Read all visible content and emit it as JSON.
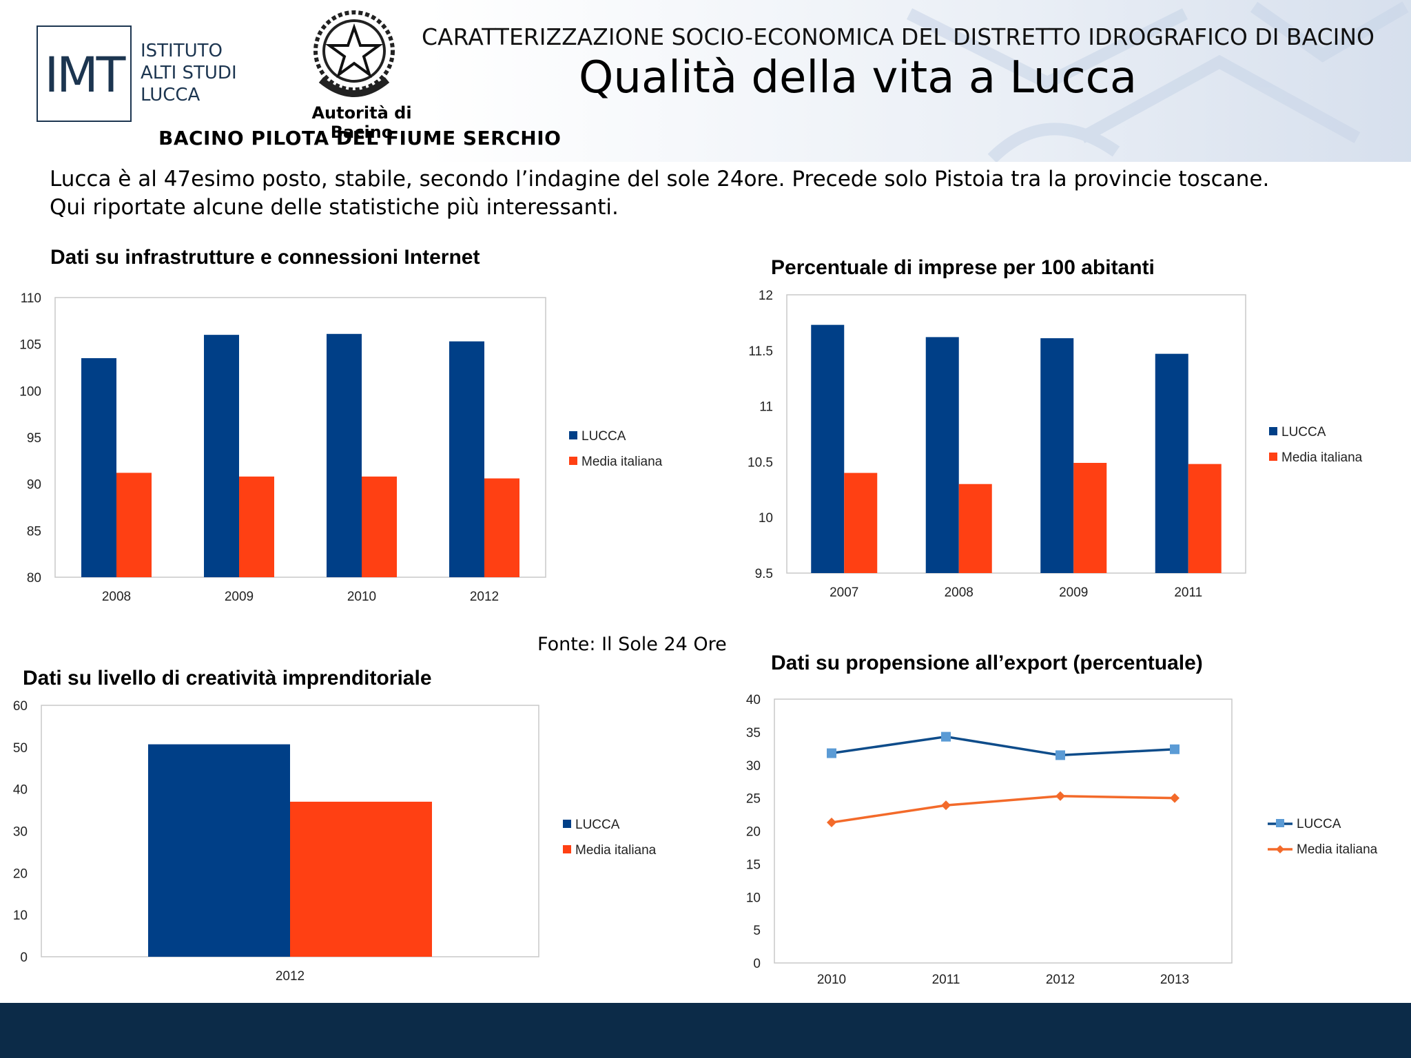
{
  "header": {
    "institute_logo_text": "IMT",
    "institute_name_lines": [
      "ISTITUTO",
      "ALTI STUDI",
      "LUCCA"
    ],
    "authority": "Autorità di Bacino",
    "basin": "BACINO PILOTA DEL FIUME SERCHIO",
    "super_title": "CARATTERIZZAZIONE SOCIO-ECONOMICA DEL DISTRETTO IDROGRAFICO DI BACINO",
    "title": "Qualità della vita a Lucca"
  },
  "intro": {
    "line1": "Lucca è al 47esimo posto, stabile, secondo l’indagine del sole 24ore. Precede solo Pistoia tra la provincie toscane.",
    "line2": "Qui riportate alcune delle statistiche più interessanti."
  },
  "source": "Fonte: Il Sole 24 Ore",
  "colors": {
    "lucca": "#003f87",
    "media": "#ff4013",
    "lucca_line": "#0e4c8a",
    "lucca_marker": "#5b9bd5",
    "media_line": "#f36a2a",
    "footer": "#0c2b48"
  },
  "panels": {
    "infra": {
      "title": "Dati su infrastrutture e connessioni Internet"
    },
    "imprese": {
      "title": "Percentuale di imprese per 100 abitanti"
    },
    "creativita": {
      "title": "Dati su livello di creatività imprenditoriale"
    },
    "export": {
      "title": "Dati su propensione all’export (percentuale)"
    }
  },
  "chart_data": [
    {
      "type": "bar",
      "title": "Dati su infrastrutture e connessioni Internet",
      "categories": [
        "2008",
        "2009",
        "2010",
        "2012"
      ],
      "series": [
        {
          "name": "LUCCA",
          "values": [
            103.5,
            106.0,
            106.1,
            105.3
          ]
        },
        {
          "name": "Media italiana",
          "values": [
            91.2,
            90.8,
            90.8,
            90.6
          ]
        }
      ],
      "ylim": [
        80,
        110
      ],
      "yticks": [
        "80",
        "85",
        "90",
        "95",
        "100",
        "105",
        "110"
      ],
      "legend": "right"
    },
    {
      "type": "bar",
      "title": "Percentuale di imprese per 100 abitanti",
      "categories": [
        "2007",
        "2008",
        "2009",
        "2011"
      ],
      "series": [
        {
          "name": "LUCCA",
          "values": [
            11.73,
            11.62,
            11.61,
            11.47
          ]
        },
        {
          "name": "Media italiana",
          "values": [
            10.4,
            10.3,
            10.49,
            10.48
          ]
        }
      ],
      "ylim": [
        9.5,
        12
      ],
      "yticks": [
        "9.5",
        "10",
        "10.5",
        "11",
        "11.5",
        "12"
      ],
      "legend": "right"
    },
    {
      "type": "bar",
      "title": "Dati su livello di creatività imprenditoriale",
      "categories": [
        "2012"
      ],
      "series": [
        {
          "name": "LUCCA",
          "values": [
            50.7
          ]
        },
        {
          "name": "Media italiana",
          "values": [
            37.0
          ]
        }
      ],
      "ylim": [
        0,
        60
      ],
      "yticks": [
        "0",
        "10",
        "20",
        "30",
        "40",
        "50",
        "60"
      ],
      "legend": "right"
    },
    {
      "type": "line",
      "title": "Dati su propensione all’export (percentuale)",
      "categories": [
        "2010",
        "2011",
        "2012",
        "2013"
      ],
      "series": [
        {
          "name": "LUCCA",
          "values": [
            31.8,
            34.3,
            31.5,
            32.4
          ]
        },
        {
          "name": "Media italiana",
          "values": [
            21.3,
            23.9,
            25.3,
            25.0
          ]
        }
      ],
      "ylim": [
        0,
        40
      ],
      "yticks": [
        "0",
        "5",
        "10",
        "15",
        "20",
        "25",
        "30",
        "35",
        "40"
      ],
      "legend": "right"
    }
  ]
}
